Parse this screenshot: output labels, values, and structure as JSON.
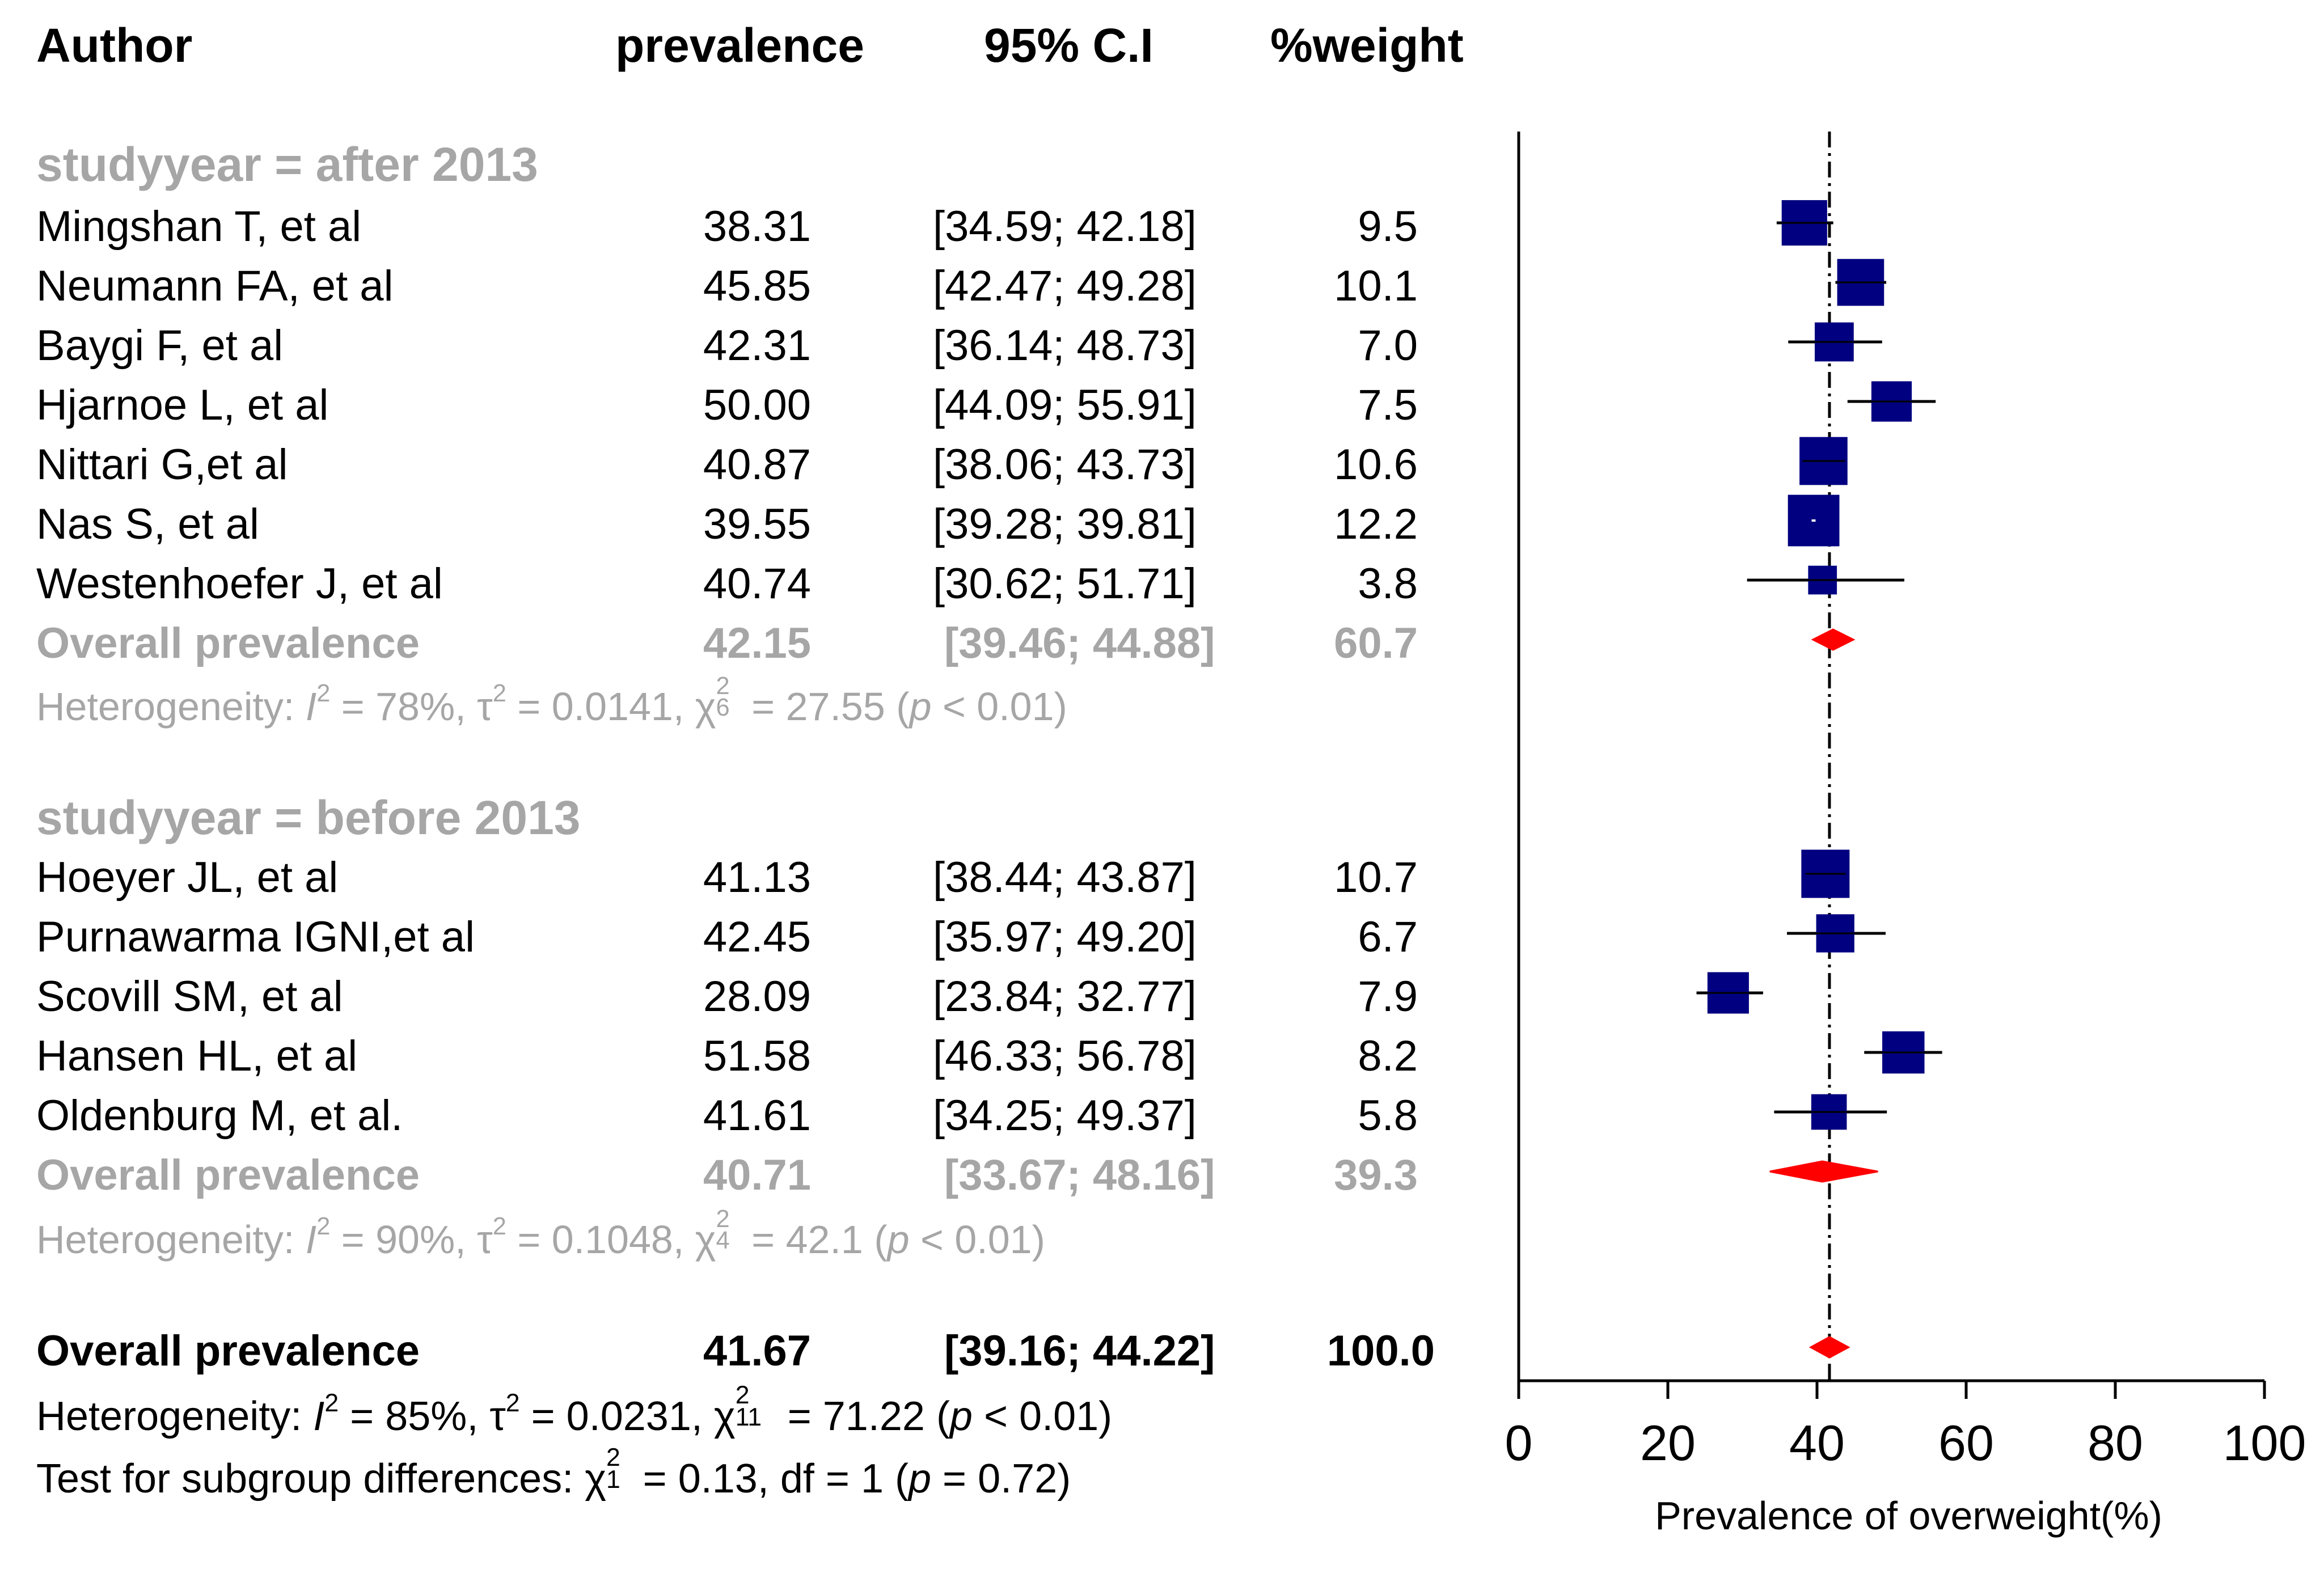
{
  "headers": {
    "author": "Author",
    "prevalence": "prevalence",
    "ci": "95% C.I",
    "weight": "%weight"
  },
  "groups": [
    {
      "label": "studyyear = after 2013",
      "studies": [
        {
          "author": "Mingshan T, et al",
          "prev": "38.31",
          "ci": "[34.59; 42.18]",
          "weight": "9.5"
        },
        {
          "author": "Neumann FA, et al",
          "prev": "45.85",
          "ci": "[42.47; 49.28]",
          "weight": "10.1"
        },
        {
          "author": "Baygi F, et al",
          "prev": "42.31",
          "ci": "[36.14; 48.73]",
          "weight": "7.0"
        },
        {
          "author": "Hjarnoe L, et al",
          "prev": "50.00",
          "ci": "[44.09; 55.91]",
          "weight": "7.5"
        },
        {
          "author": "Nittari G,et al",
          "prev": "40.87",
          "ci": "[38.06; 43.73]",
          "weight": "10.6"
        },
        {
          "author": "Nas S, et al",
          "prev": "39.55",
          "ci": "[39.28; 39.81]",
          "weight": "12.2"
        },
        {
          "author": "Westenhoefer J, et al",
          "prev": "40.74",
          "ci": "[30.62; 51.71]",
          "weight": "3.8"
        }
      ],
      "overall": {
        "label": "Overall prevalence",
        "prev": "42.15",
        "ci": "[39.46; 44.88]",
        "weight": "60.7"
      },
      "het": {
        "prefix": "Heterogeneity: ",
        "i2": "78%",
        "tau2": "0.0141",
        "df": "6",
        "chi2": "27.55",
        "p": "0.01"
      }
    },
    {
      "label": "studyyear = before 2013",
      "studies": [
        {
          "author": "Hoeyer JL, et al",
          "prev": "41.13",
          "ci": "[38.44; 43.87]",
          "weight": "10.7"
        },
        {
          "author": "Purnawarma IGNI,et al",
          "prev": "42.45",
          "ci": "[35.97; 49.20]",
          "weight": "6.7"
        },
        {
          "author": "Scovill SM, et al",
          "prev": "28.09",
          "ci": "[23.84; 32.77]",
          "weight": "7.9"
        },
        {
          "author": "Hansen HL, et al",
          "prev": "51.58",
          "ci": "[46.33; 56.78]",
          "weight": "8.2"
        },
        {
          "author": "Oldenburg M, et al.",
          "prev": "41.61",
          "ci": "[34.25; 49.37]",
          "weight": "5.8"
        }
      ],
      "overall": {
        "label": "Overall prevalence",
        "prev": "40.71",
        "ci": "[33.67; 48.16]",
        "weight": "39.3"
      },
      "het": {
        "prefix": "Heterogeneity: ",
        "i2": "90%",
        "tau2": "0.1048",
        "df": "4",
        "chi2": "42.1",
        "p": "0.01"
      }
    }
  ],
  "overall": {
    "label": "Overall prevalence",
    "prev": "41.67",
    "ci": "[39.16; 44.22]",
    "weight": "100.0",
    "het": {
      "prefix": "Heterogeneity: ",
      "i2": "85%",
      "tau2": "0.0231",
      "df": "11",
      "chi2": "71.22",
      "p": "0.01"
    },
    "subgroup": {
      "prefix": "Test for subgroup differences: ",
      "df_sub": "1",
      "chi2": "0.13",
      "df_text": "df = 1",
      "p": "0.72"
    }
  },
  "colors": {
    "square": "#000080",
    "diamond": "#ff0000",
    "gray": "#a6a6a6",
    "axis": "#000000"
  },
  "chart_data": {
    "type": "forest",
    "xlabel": "Prevalence of overweight(%)",
    "xlim": [
      0,
      100
    ],
    "xticks": [
      "0",
      "20",
      "40",
      "60",
      "80",
      "100"
    ],
    "reference_line": 41.67,
    "series": [
      {
        "name": "Mingshan T, et al",
        "value": 38.31,
        "lo": 34.59,
        "hi": 42.18,
        "weight": 9.5
      },
      {
        "name": "Neumann FA, et al",
        "value": 45.85,
        "lo": 42.47,
        "hi": 49.28,
        "weight": 10.1
      },
      {
        "name": "Baygi F, et al",
        "value": 42.31,
        "lo": 36.14,
        "hi": 48.73,
        "weight": 7.0
      },
      {
        "name": "Hjarnoe L, et al",
        "value": 50.0,
        "lo": 44.09,
        "hi": 55.91,
        "weight": 7.5
      },
      {
        "name": "Nittari G,et al",
        "value": 40.87,
        "lo": 38.06,
        "hi": 43.73,
        "weight": 10.6
      },
      {
        "name": "Nas S, et al",
        "value": 39.55,
        "lo": 39.28,
        "hi": 39.81,
        "weight": 12.2
      },
      {
        "name": "Westenhoefer J, et al",
        "value": 40.74,
        "lo": 30.62,
        "hi": 51.71,
        "weight": 3.8
      },
      {
        "name": "Overall prevalence (after 2013)",
        "value": 42.15,
        "lo": 39.46,
        "hi": 44.88,
        "summary": true
      },
      {
        "name": "Hoeyer JL, et al",
        "value": 41.13,
        "lo": 38.44,
        "hi": 43.87,
        "weight": 10.7
      },
      {
        "name": "Purnawarma IGNI,et al",
        "value": 42.45,
        "lo": 35.97,
        "hi": 49.2,
        "weight": 6.7
      },
      {
        "name": "Scovill SM, et al",
        "value": 28.09,
        "lo": 23.84,
        "hi": 32.77,
        "weight": 7.9
      },
      {
        "name": "Hansen HL, et al",
        "value": 51.58,
        "lo": 46.33,
        "hi": 56.78,
        "weight": 8.2
      },
      {
        "name": "Oldenburg M, et al.",
        "value": 41.61,
        "lo": 34.25,
        "hi": 49.37,
        "weight": 5.8
      },
      {
        "name": "Overall prevalence (before 2013)",
        "value": 40.71,
        "lo": 33.67,
        "hi": 48.16,
        "summary": true
      },
      {
        "name": "Overall prevalence",
        "value": 41.67,
        "lo": 39.16,
        "hi": 44.22,
        "summary": true
      }
    ]
  }
}
